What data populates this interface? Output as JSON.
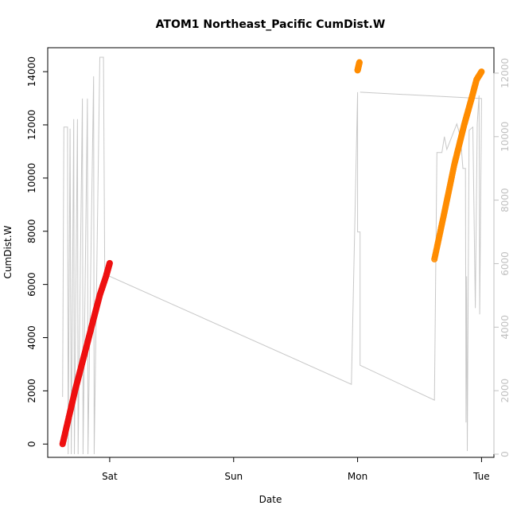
{
  "chart_data": {
    "type": "scatter",
    "title": "ATOM1 Northeast_Pacific CumDist.W",
    "xlabel": "Date",
    "ylabel": "CumDist.W",
    "x_ticks": [
      {
        "x": 1.0,
        "label": "Sat"
      },
      {
        "x": 2.0,
        "label": "Sun"
      },
      {
        "x": 3.0,
        "label": "Mon"
      },
      {
        "x": 4.0,
        "label": "Tue"
      }
    ],
    "xlim": [
      0.5,
      4.1
    ],
    "ylim": [
      -500,
      14900
    ],
    "y_ticks": [
      0,
      2000,
      4000,
      6000,
      8000,
      10000,
      12000,
      14000
    ],
    "y2lim": [
      -100,
      12800
    ],
    "y2_ticks": [
      0,
      2000,
      4000,
      6000,
      8000,
      10000,
      12000
    ],
    "grid": false,
    "colors": {
      "series_a": "#ee1111",
      "series_b": "#ff8c00",
      "secondary_line": "#c8c8c8",
      "right_axis": "#c0c0c0"
    },
    "series": [
      {
        "values": [
          [
            0.62,
            0
          ],
          [
            0.67,
            1000
          ],
          [
            0.72,
            2000
          ],
          [
            0.77,
            2900
          ],
          [
            0.82,
            3800
          ],
          [
            0.87,
            4700
          ],
          [
            0.92,
            5600
          ],
          [
            0.97,
            6300
          ],
          [
            1.0,
            6800
          ]
        ]
      },
      {
        "values": [
          [
            3.0,
            14050
          ],
          [
            3.015,
            14350
          ],
          [
            3.62,
            6950
          ],
          [
            3.7,
            8700
          ],
          [
            3.78,
            10500
          ],
          [
            3.86,
            12000
          ],
          [
            3.92,
            13000
          ],
          [
            3.96,
            13700
          ],
          [
            4.0,
            14000
          ]
        ]
      },
      {
        "type": "line",
        "axis": "right",
        "values": [
          [
            0.62,
            1800
          ],
          [
            0.63,
            10300
          ],
          [
            0.66,
            10300
          ],
          [
            0.665,
            0
          ],
          [
            0.68,
            10250
          ],
          [
            0.69,
            0
          ],
          [
            0.71,
            10550
          ],
          [
            0.715,
            0
          ],
          [
            0.74,
            10550
          ],
          [
            0.745,
            0
          ],
          [
            0.78,
            11200
          ],
          [
            0.785,
            0
          ],
          [
            0.82,
            11200
          ],
          [
            0.825,
            0
          ],
          [
            0.87,
            11900
          ],
          [
            0.875,
            0
          ],
          [
            0.92,
            12500
          ],
          [
            0.95,
            12500
          ],
          [
            0.96,
            5600
          ],
          [
            1.0,
            5600
          ],
          [
            2.95,
            2200
          ],
          [
            3.0,
            11400
          ],
          [
            3.0,
            7000
          ],
          [
            3.02,
            7000
          ],
          [
            3.02,
            2800
          ],
          [
            3.62,
            1700
          ],
          [
            3.64,
            9500
          ],
          [
            3.68,
            9500
          ],
          [
            3.7,
            10000
          ],
          [
            3.72,
            9600
          ],
          [
            3.8,
            10400
          ],
          [
            3.83,
            10000
          ],
          [
            3.85,
            9000
          ],
          [
            3.87,
            9000
          ],
          [
            3.875,
            1000
          ],
          [
            3.88,
            5600
          ],
          [
            3.885,
            100
          ],
          [
            3.9,
            10200
          ],
          [
            3.93,
            10300
          ],
          [
            3.95,
            4600
          ],
          [
            3.965,
            10400
          ],
          [
            3.98,
            11300
          ],
          [
            3.985,
            4400
          ],
          [
            4.0,
            11100
          ],
          [
            4.0,
            11200
          ],
          [
            3.02,
            11400
          ]
        ]
      }
    ]
  }
}
